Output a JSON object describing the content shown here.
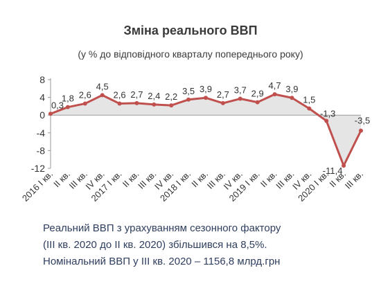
{
  "chart_data": {
    "type": "line",
    "title": "Зміна реального ВВП",
    "subtitle": "(у % до відповідного кварталу попереднього року)",
    "categories": [
      "2016 I кв.",
      "II кв.",
      "III кв.",
      "IV кв.",
      "2017 I кв.",
      "II кв.",
      "III кв.",
      "IV кв.",
      "2018 I кв.",
      "II кв.",
      "III кв.",
      "IV кв.",
      "2019 I кв.",
      "II кв.",
      "III кв.",
      "IV кв.",
      "2020 I кв.",
      "II кв.",
      "III кв."
    ],
    "series": [
      {
        "values": [
          0.3,
          1.8,
          2.6,
          4.5,
          2.6,
          2.7,
          2.4,
          2.2,
          3.5,
          3.9,
          2.7,
          3.7,
          2.9,
          4.7,
          3.9,
          1.5,
          -1.3,
          -11.4,
          -3.5
        ]
      }
    ],
    "data_labels": [
      "0,3",
      "1,8",
      "2,6",
      "4,5",
      "2,6",
      "2,7",
      "2,4",
      "2,2",
      "3,5",
      "3,9",
      "2,7",
      "3,7",
      "2,9",
      "4,7",
      "3,9",
      "1,5",
      "-1,3",
      "-11,4",
      "-3,5"
    ],
    "y_ticks": [
      8,
      4,
      0,
      -4,
      -8,
      -12
    ],
    "ylim": [
      -12,
      8
    ],
    "grid": false,
    "line_color": "#c0504d",
    "area_color": "#e5e5e5"
  },
  "notes": {
    "line1": "Реальний ВВП з урахуванням сезонного фактору",
    "line2": "(III кв. 2020 до II кв. 2020) збільшився на 8,5%.",
    "line3": "Номінальний ВВП у III кв. 2020 – 1156,8 млрд.грн"
  }
}
